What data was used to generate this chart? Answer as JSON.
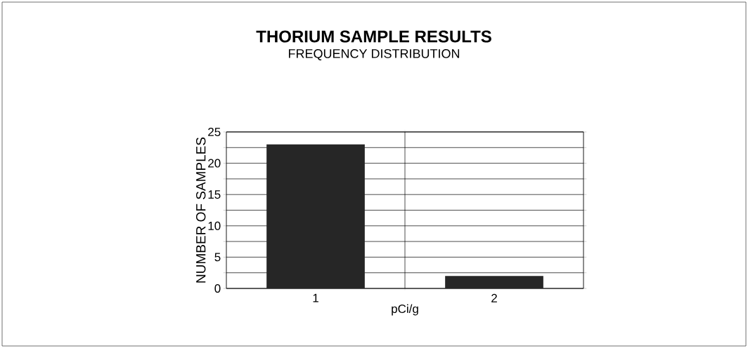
{
  "chart_data": {
    "type": "bar",
    "title": "THORIUM SAMPLE RESULTS",
    "subtitle": "FREQUENCY DISTRIBUTION",
    "xlabel": "pCi/g",
    "ylabel": "NUMBER OF SAMPLES",
    "categories": [
      "1",
      "2"
    ],
    "values": [
      23,
      2
    ],
    "color": "#262626",
    "ylim": [
      0,
      25
    ],
    "yticks": [
      0,
      {
        "value": 2.5,
        "label": null
      },
      5,
      {
        "value": 7.5,
        "label": null
      },
      10,
      {
        "value": 12.5,
        "label": null
      },
      15,
      {
        "value": 17.5,
        "label": null
      },
      20,
      {
        "value": 22.5,
        "label": null
      },
      25
    ],
    "grid": true
  }
}
